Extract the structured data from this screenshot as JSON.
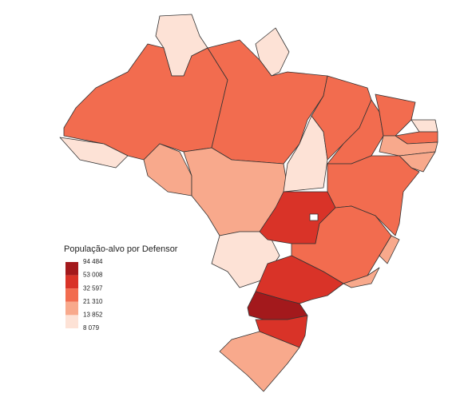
{
  "legend": {
    "title": "População-alvo por Defensor",
    "labels": [
      "94 484",
      "53 008",
      "32 597",
      "21 310",
      "13 852",
      "8 079"
    ],
    "colors": [
      "#a3191c",
      "#d93328",
      "#f26c4f",
      "#f8a98c",
      "#fde2d6"
    ]
  }
}
